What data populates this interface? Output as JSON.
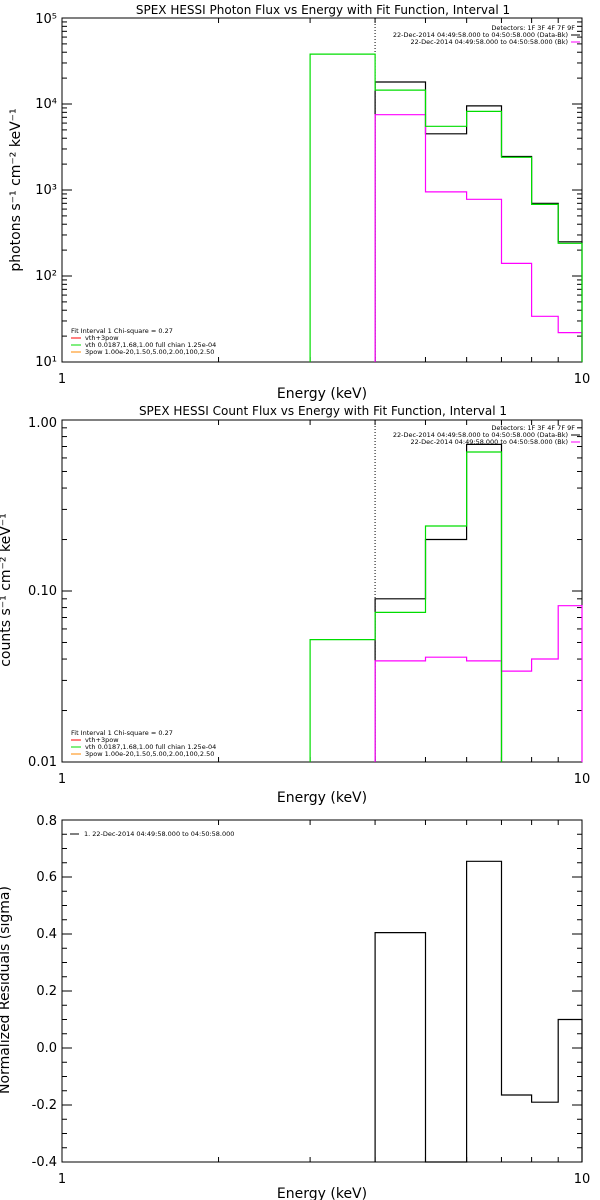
{
  "chart_data": [
    {
      "type": "line",
      "title": "SPEX HESSI Photon Flux vs Energy with Fit Function, Interval 1",
      "xlabel": "Energy (keV)",
      "ylabel": "photons s⁻¹ cm⁻² keV⁻¹",
      "xscale": "log",
      "yscale": "log",
      "xlim": [
        1,
        10
      ],
      "ylim": [
        10,
        100000
      ],
      "x_ticks": [
        "1",
        "10"
      ],
      "y_ticks": [
        "10¹",
        "10²",
        "10³",
        "10⁴",
        "10⁵"
      ],
      "dotted_x": 4,
      "legend_top_right": [
        {
          "text": "Detectors: 1F 3F 4F 7F 9F",
          "color": "#000000"
        },
        {
          "text": "22-Dec-2014 04:49:58.000 to 04:50:58.000 (Data-Bk)",
          "color": "#000000"
        },
        {
          "text": "22-Dec-2014 04:49:58.000 to 04:50:58.000 (Bk)",
          "color": "#ff00ff"
        }
      ],
      "legend_bottom_left": [
        {
          "text": "Fit Interval 1   Chi-square = 0.27",
          "color": "#000000"
        },
        {
          "text": "vth+3pow",
          "color": "#ff0000"
        },
        {
          "text": "vth 0.0187,1.68,1.00  full chian 1.25e-04",
          "color": "#00dd00"
        },
        {
          "text": "3pow 1.00e-20,1.50,5.00,2.00,100,2.50",
          "color": "#ff8800"
        }
      ],
      "edges": [
        3,
        4,
        5,
        6,
        7,
        8,
        9,
        10
      ],
      "series": [
        {
          "role": "data_minus_bk",
          "color": "#000000",
          "values": [
            null,
            18000,
            4500,
            9500,
            2450,
            700,
            250
          ]
        },
        {
          "role": "bk",
          "color": "#ff00ff",
          "values": [
            null,
            7500,
            950,
            780,
            140,
            34,
            22
          ]
        },
        {
          "role": "fit_vth",
          "color": "#00dd00",
          "values": [
            38000,
            14500,
            5500,
            8200,
            2400,
            680,
            240
          ]
        }
      ]
    },
    {
      "type": "line",
      "title": "SPEX HESSI Count Flux vs Energy with Fit Function, Interval 1",
      "xlabel": "Energy (keV)",
      "ylabel": "counts s⁻¹ cm⁻² keV⁻¹",
      "xscale": "log",
      "yscale": "log",
      "xlim": [
        1,
        10
      ],
      "ylim": [
        0.01,
        1
      ],
      "x_ticks": [
        "1",
        "10"
      ],
      "y_ticks": [
        "0.01",
        "0.10",
        "1.00"
      ],
      "dotted_x": 4,
      "legend_top_right": [
        {
          "text": "Detectors: 1F 3F 4F 7F 9F",
          "color": "#000000"
        },
        {
          "text": "22-Dec-2014 04:49:58.000 to 04:50:58.000 (Data-Bk)",
          "color": "#000000"
        },
        {
          "text": "22-Dec-2014 04:49:58.000 to 04:50:58.000 (Bk)",
          "color": "#ff00ff"
        }
      ],
      "legend_bottom_left": [
        {
          "text": "Fit Interval 1   Chi-square = 0.27",
          "color": "#000000"
        },
        {
          "text": "vth+3pow",
          "color": "#ff0000"
        },
        {
          "text": "vth 0.0187,1.68,1.00  full chian 1.25e-04",
          "color": "#00dd00"
        },
        {
          "text": "3pow 1.00e-20,1.50,5.00,2.00,100,2.50",
          "color": "#ff8800"
        }
      ],
      "edges": [
        3,
        4,
        5,
        6,
        7,
        8,
        9,
        10
      ],
      "series": [
        {
          "role": "data_minus_bk",
          "color": "#000000",
          "values": [
            null,
            0.09,
            0.2,
            0.72,
            null,
            null,
            null
          ]
        },
        {
          "role": "bk",
          "color": "#ff00ff",
          "values": [
            null,
            0.039,
            0.041,
            0.039,
            0.034,
            0.04,
            0.082
          ]
        },
        {
          "role": "fit_vth",
          "color": "#00dd00",
          "values": [
            0.052,
            0.075,
            0.24,
            0.65,
            null,
            null,
            null
          ]
        }
      ]
    },
    {
      "type": "line",
      "title": "",
      "xlabel": "Energy (keV)",
      "ylabel": "Normalized Residuals (sigma)",
      "xscale": "log",
      "yscale": "linear",
      "xlim": [
        1,
        10
      ],
      "ylim": [
        -0.4,
        0.8
      ],
      "x_ticks": [
        "1",
        "10"
      ],
      "y_ticks": [
        "-0.4",
        "-0.2",
        "0.0",
        "0.2",
        "0.4",
        "0.6",
        "0.8"
      ],
      "legend_text": "1. 22-Dec-2014 04:49:58.000 to 04:50:58.000",
      "edges": [
        4,
        5,
        6,
        7,
        8,
        9,
        10
      ],
      "series": [
        {
          "role": "residuals",
          "color": "#000000",
          "values": [
            0.405,
            -0.4,
            0.655,
            -0.165,
            -0.19,
            0.1
          ]
        }
      ]
    }
  ]
}
